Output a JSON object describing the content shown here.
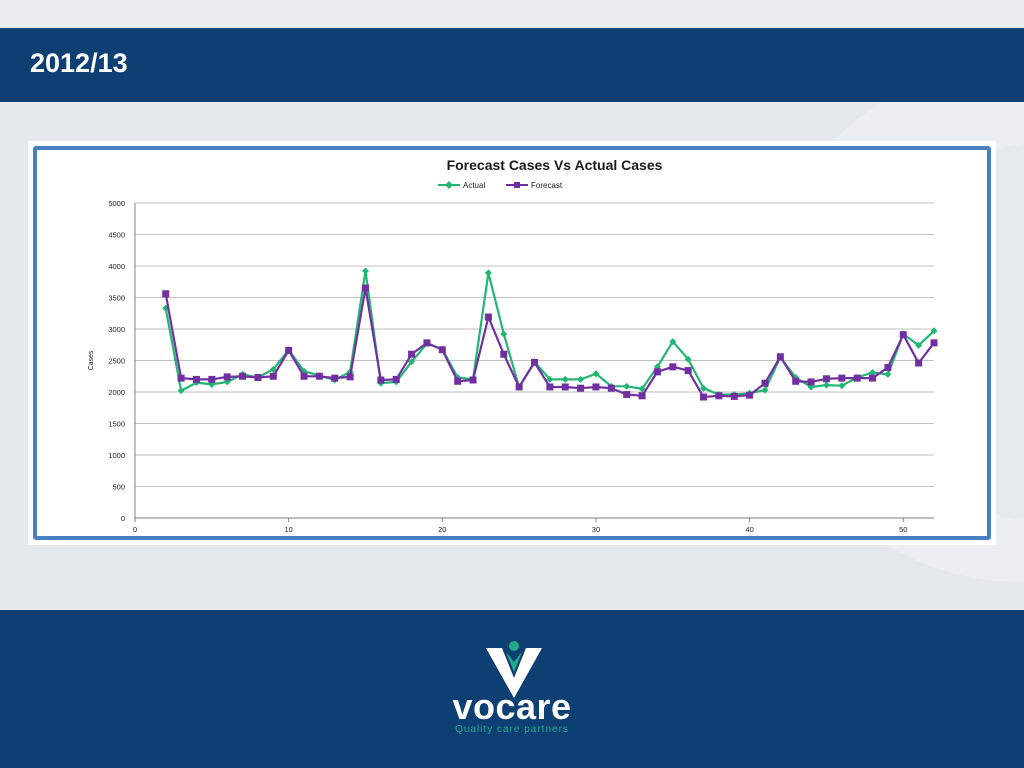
{
  "slide": {
    "title": "2012/13"
  },
  "brand": {
    "name": "vocare",
    "tagline": "Quality care partners",
    "accent": "#23a98a",
    "navy": "#0d3f73"
  },
  "chart_data": {
    "type": "line",
    "title": "Forecast Cases Vs Actual Cases",
    "xlabel": "",
    "ylabel": "Cases",
    "xlim": [
      0,
      52
    ],
    "ylim": [
      0,
      5000
    ],
    "xticks": [
      0,
      10,
      20,
      30,
      40,
      50
    ],
    "yticks": [
      0,
      500,
      1000,
      1500,
      2000,
      2500,
      3000,
      3500,
      4000,
      4500,
      5000
    ],
    "grid": "horizontal",
    "legend": "top-center",
    "x": [
      2,
      3,
      4,
      5,
      6,
      7,
      8,
      9,
      10,
      11,
      12,
      13,
      14,
      15,
      16,
      17,
      18,
      19,
      20,
      21,
      22,
      23,
      24,
      25,
      26,
      27,
      28,
      29,
      30,
      31,
      32,
      33,
      34,
      35,
      36,
      37,
      38,
      39,
      40,
      41,
      42,
      43,
      44,
      45,
      46,
      47,
      48,
      49,
      50,
      51,
      52
    ],
    "series": [
      {
        "name": "Actual",
        "color": "#22b573",
        "marker": "diamond",
        "values": [
          3330,
          2020,
          2150,
          2120,
          2160,
          2280,
          2230,
          2360,
          2670,
          2330,
          2260,
          2190,
          2320,
          3920,
          2140,
          2160,
          2480,
          2770,
          2680,
          2230,
          2200,
          3890,
          2920,
          2080,
          2480,
          2200,
          2200,
          2200,
          2290,
          2090,
          2090,
          2050,
          2400,
          2800,
          2520,
          2060,
          1960,
          1960,
          1980,
          2030,
          2550,
          2230,
          2080,
          2110,
          2100,
          2230,
          2310,
          2280,
          2920,
          2740,
          2970
        ]
      },
      {
        "name": "Forecast",
        "color": "#7030a0",
        "marker": "square",
        "values": [
          3560,
          2220,
          2200,
          2200,
          2240,
          2250,
          2230,
          2250,
          2660,
          2250,
          2250,
          2220,
          2240,
          3650,
          2190,
          2200,
          2600,
          2780,
          2670,
          2170,
          2190,
          3190,
          2600,
          2080,
          2470,
          2080,
          2080,
          2060,
          2080,
          2060,
          1960,
          1940,
          2320,
          2400,
          2340,
          1920,
          1940,
          1930,
          1950,
          2140,
          2560,
          2170,
          2160,
          2210,
          2220,
          2220,
          2220,
          2390,
          2910,
          2460,
          2780
        ]
      }
    ]
  }
}
